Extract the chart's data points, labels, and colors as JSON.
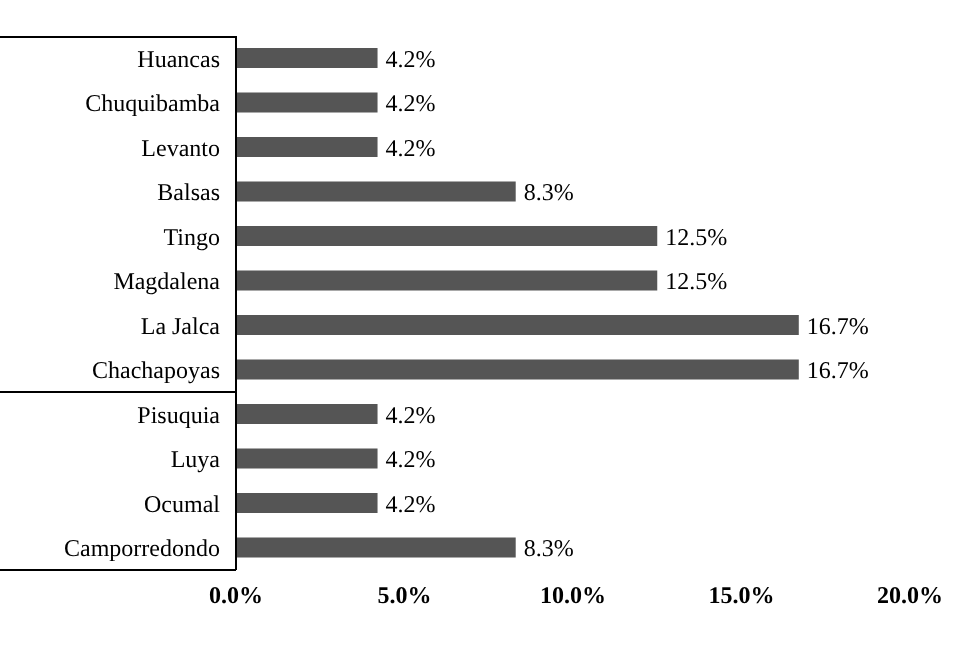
{
  "chart_data": {
    "type": "bar",
    "orientation": "horizontal",
    "categories": [
      "Huancas",
      "Chuquibamba",
      "Levanto",
      "Balsas",
      "Tingo",
      "Magdalena",
      "La Jalca",
      "Chachapoyas",
      "Pisuquia",
      "Luya",
      "Ocumal",
      "Camporredondo"
    ],
    "values": [
      4.2,
      4.2,
      4.2,
      8.3,
      12.5,
      12.5,
      16.7,
      16.7,
      4.2,
      4.2,
      4.2,
      8.3
    ],
    "value_labels": [
      "4.2%",
      "4.2%",
      "4.2%",
      "8.3%",
      "12.5%",
      "12.5%",
      "16.7%",
      "16.7%",
      "4.2%",
      "4.2%",
      "4.2%",
      "8.3%"
    ],
    "color": "#555555",
    "xlim": [
      0,
      20
    ],
    "xticks": [
      {
        "value": 0,
        "label": "0.0%"
      },
      {
        "value": 5,
        "label": "5.0%"
      },
      {
        "value": 10,
        "label": "10.0%"
      },
      {
        "value": 15,
        "label": "15.0%"
      },
      {
        "value": 20,
        "label": "20.0%"
      }
    ],
    "grid": false,
    "legend": false
  }
}
